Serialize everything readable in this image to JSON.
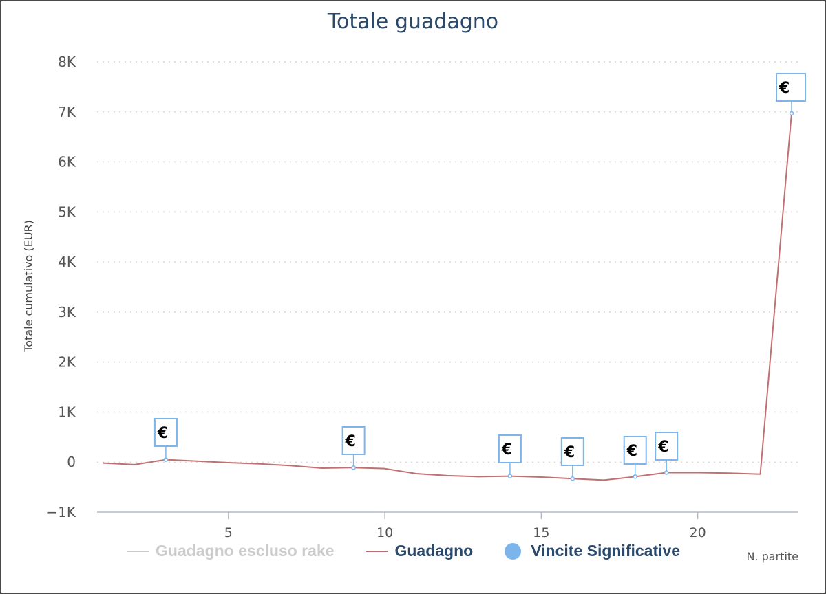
{
  "chart_data": {
    "type": "line",
    "title": "Totale guadagno",
    "xlabel": "N. partite",
    "ylabel": "Totale cumulativo (EUR)",
    "xlim": [
      1,
      23
    ],
    "ylim": [
      -1000,
      8000
    ],
    "x_ticks": [
      5,
      10,
      15,
      20
    ],
    "x_tick_labels": [
      "5",
      "10",
      "15",
      "20"
    ],
    "y_ticks": [
      -1000,
      0,
      1000,
      2000,
      3000,
      4000,
      5000,
      6000,
      7000,
      8000
    ],
    "y_tick_labels": [
      "−1K",
      "0",
      "1K",
      "2K",
      "3K",
      "4K",
      "5K",
      "6K",
      "7K",
      "8K"
    ],
    "grid": true,
    "legend_position": "bottom",
    "series": [
      {
        "name": "Guadagno escluso rake",
        "color": "#cccccc",
        "visible": false,
        "x": [],
        "y": []
      },
      {
        "name": "Guadagno",
        "color": "#c07070",
        "visible": true,
        "x": [
          1,
          2,
          3,
          4,
          5,
          6,
          7,
          8,
          9,
          10,
          11,
          12,
          13,
          14,
          15,
          16,
          17,
          18,
          19,
          20,
          21,
          22,
          23
        ],
        "y": [
          -20,
          -50,
          50,
          20,
          -10,
          -35,
          -70,
          -120,
          -110,
          -130,
          -230,
          -270,
          -290,
          -280,
          -300,
          -330,
          -360,
          -290,
          -210,
          -210,
          -220,
          -240,
          6970
        ]
      }
    ],
    "flags": {
      "name": "Vincite Significative",
      "color": "#7cb5ec",
      "symbol": "€",
      "points": [
        {
          "x": 3,
          "y": 50
        },
        {
          "x": 9,
          "y": -110
        },
        {
          "x": 14,
          "y": -280
        },
        {
          "x": 16,
          "y": -330
        },
        {
          "x": 18,
          "y": -290
        },
        {
          "x": 19,
          "y": -210
        },
        {
          "x": 23,
          "y": 6970
        }
      ]
    }
  },
  "legend": {
    "items": [
      {
        "label": "Guadagno escluso rake",
        "color": "#cccccc",
        "kind": "line",
        "hidden": true
      },
      {
        "label": "Guadagno",
        "color": "#c07070",
        "kind": "line",
        "hidden": false
      },
      {
        "label": "Vincite Significative",
        "color": "#7cb5ec",
        "kind": "dot",
        "hidden": false
      }
    ]
  }
}
